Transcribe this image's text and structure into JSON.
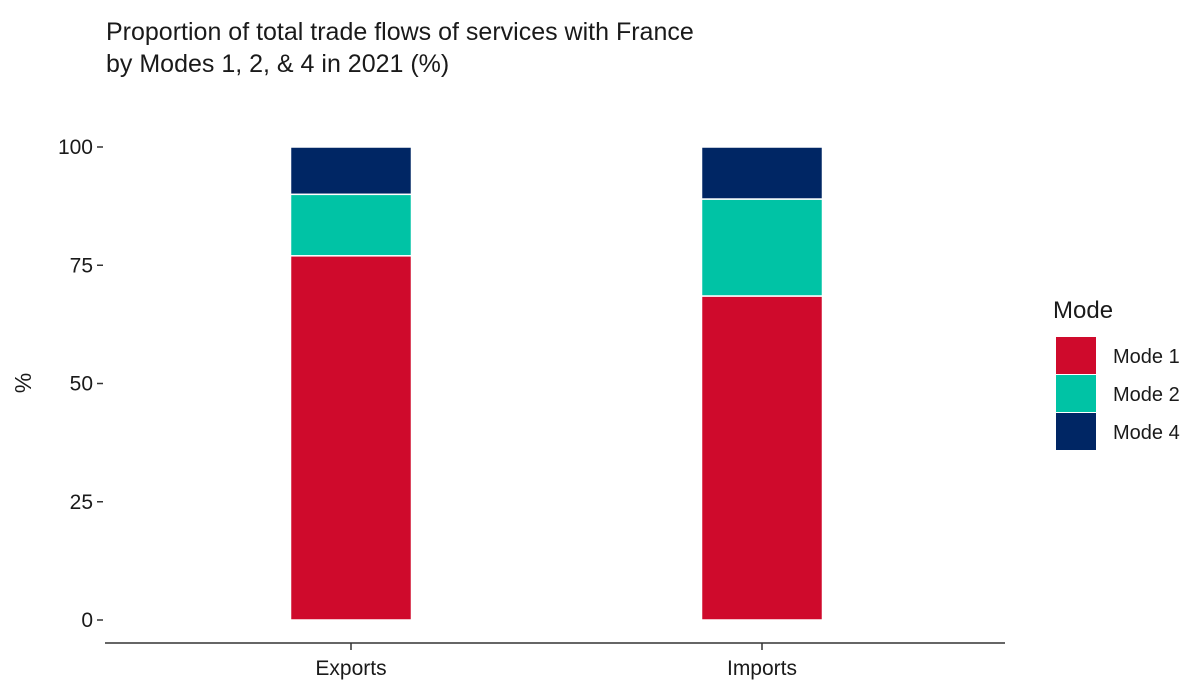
{
  "chart_data": {
    "type": "bar",
    "stacked": true,
    "title_lines": [
      "Proportion of total trade flows of services with France",
      "by Modes 1, 2, & 4 in 2021 (%)"
    ],
    "xlabel": "",
    "ylabel": "%",
    "categories": [
      "Exports",
      "Imports"
    ],
    "ylim": [
      0,
      100
    ],
    "yticks": [
      "0",
      "25",
      "50",
      "75",
      "100"
    ],
    "ytick_values": [
      0,
      25,
      50,
      75,
      100
    ],
    "grid": false,
    "legend": {
      "title": "Mode",
      "placement": "right"
    },
    "series": [
      {
        "name": "Mode 1",
        "values": [
          77,
          68.5
        ],
        "color": "#cf0a2c"
      },
      {
        "name": "Mode 2",
        "values": [
          13,
          20.5
        ],
        "color": "#00c3a5"
      },
      {
        "name": "Mode 4",
        "values": [
          10,
          11
        ],
        "color": "#002664"
      }
    ]
  }
}
